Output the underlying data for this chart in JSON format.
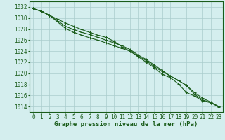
{
  "x": [
    0,
    1,
    2,
    3,
    4,
    5,
    6,
    7,
    8,
    9,
    10,
    11,
    12,
    13,
    14,
    15,
    16,
    17,
    18,
    19,
    20,
    21,
    22,
    23
  ],
  "line1": [
    1031.7,
    1031.2,
    1030.5,
    1029.8,
    1029.1,
    1028.5,
    1027.9,
    1027.4,
    1026.9,
    1026.5,
    1025.8,
    1024.8,
    1024.0,
    1023.0,
    1022.0,
    1021.0,
    1019.8,
    1019.2,
    1018.1,
    1016.5,
    1015.9,
    1015.0,
    1014.7,
    1013.9
  ],
  "line2": [
    1031.7,
    1031.2,
    1030.5,
    1029.5,
    1028.5,
    1027.9,
    1027.4,
    1027.0,
    1026.5,
    1026.0,
    1025.5,
    1025.0,
    1024.3,
    1023.3,
    1022.5,
    1021.5,
    1020.5,
    1019.5,
    1018.7,
    1017.8,
    1016.2,
    1015.2,
    1014.7,
    1014.0
  ],
  "line3": [
    1031.7,
    1031.2,
    1030.5,
    1029.3,
    1028.1,
    1027.4,
    1026.9,
    1026.4,
    1026.0,
    1025.5,
    1025.0,
    1024.5,
    1024.0,
    1023.1,
    1022.3,
    1021.2,
    1020.3,
    1019.5,
    1018.7,
    1017.8,
    1016.5,
    1015.5,
    1014.8,
    1014.0
  ],
  "line_color": "#1a5c1a",
  "bg_color": "#d4eeee",
  "grid_color": "#aacccc",
  "xlabel": "Graphe pression niveau de la mer (hPa)",
  "ylim": [
    1013,
    1033
  ],
  "xlim": [
    -0.5,
    23.5
  ],
  "yticks": [
    1014,
    1016,
    1018,
    1020,
    1022,
    1024,
    1026,
    1028,
    1030,
    1032
  ],
  "xticks": [
    0,
    1,
    2,
    3,
    4,
    5,
    6,
    7,
    8,
    9,
    10,
    11,
    12,
    13,
    14,
    15,
    16,
    17,
    18,
    19,
    20,
    21,
    22,
    23
  ],
  "xlabel_fontsize": 6.5,
  "tick_fontsize": 5.5,
  "line_width": 0.8,
  "marker_size": 2.5
}
